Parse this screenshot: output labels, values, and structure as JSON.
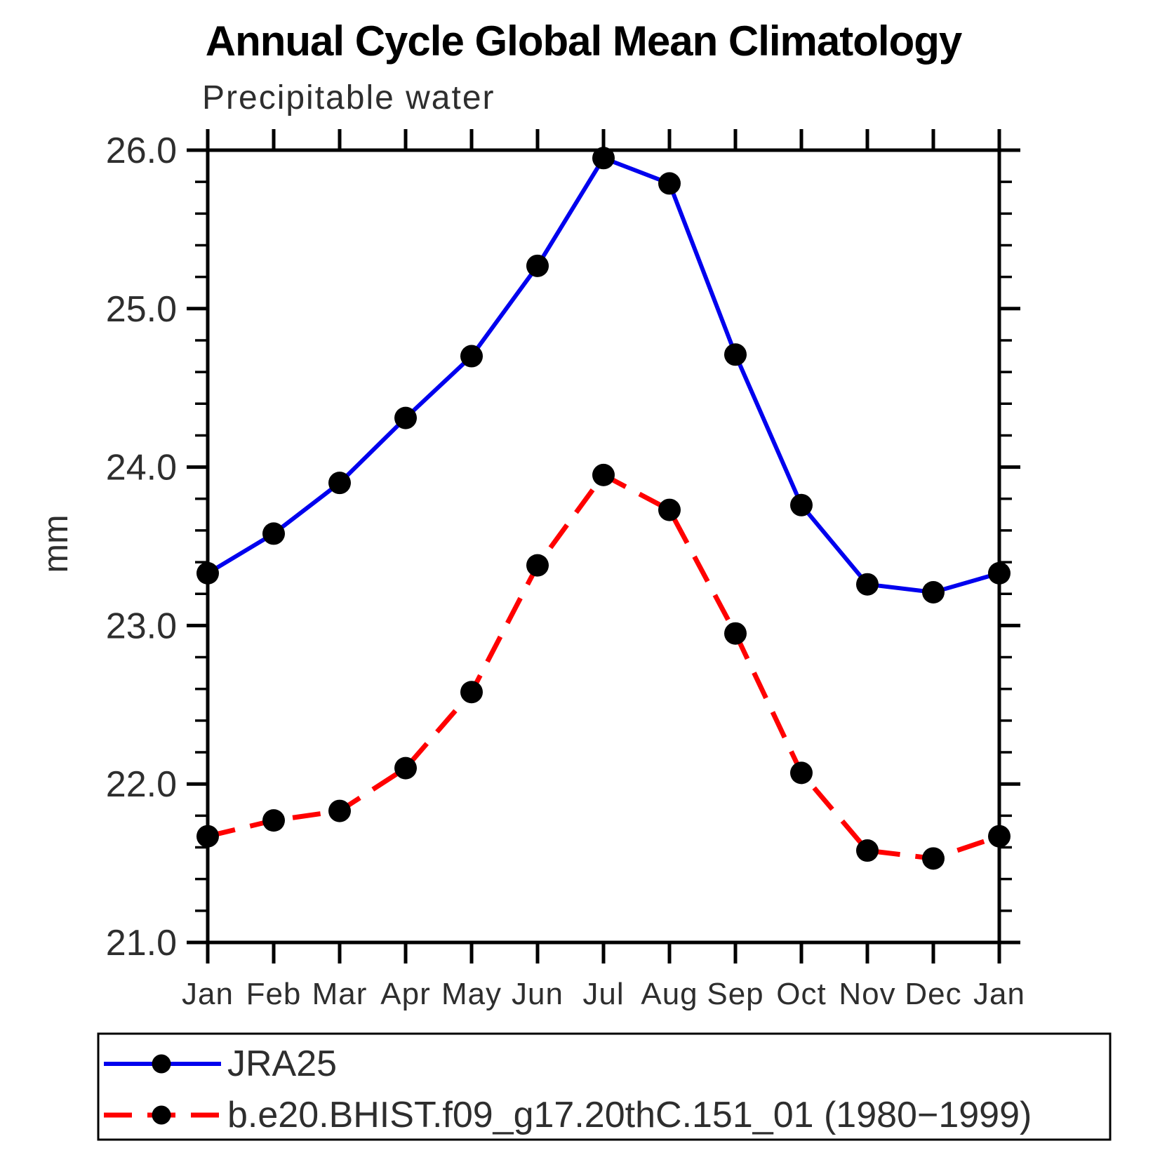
{
  "title": "Annual Cycle Global Mean Climatology",
  "subtitle": "Precipitable water",
  "ylabel": "mm",
  "chart_data": {
    "type": "line",
    "categories": [
      "Jan",
      "Feb",
      "Mar",
      "Apr",
      "May",
      "Jun",
      "Jul",
      "Aug",
      "Sep",
      "Oct",
      "Nov",
      "Dec",
      "Jan"
    ],
    "series": [
      {
        "name": "JRA25",
        "color": "#0000ee",
        "style": "solid",
        "values": [
          23.33,
          23.58,
          23.9,
          24.31,
          24.7,
          25.27,
          25.95,
          25.79,
          24.71,
          23.76,
          23.26,
          23.21,
          23.33
        ]
      },
      {
        "name": "b.e20.BHIST.f09_g17.20thC.151_01 (1980−1999)",
        "color": "#ff0000",
        "style": "dashed",
        "values": [
          21.67,
          21.77,
          21.83,
          22.1,
          22.58,
          23.38,
          23.95,
          23.73,
          22.95,
          22.07,
          21.58,
          21.53,
          21.67
        ]
      }
    ],
    "ylim": [
      21.0,
      26.0
    ],
    "ytick_major": 1.0,
    "ytick_minor": 0.2,
    "ytick_labels": [
      "21.0",
      "22.0",
      "23.0",
      "24.0",
      "25.0",
      "26.0"
    ],
    "marker_color": "#000000",
    "grid": false,
    "legend_position": "bottom"
  }
}
